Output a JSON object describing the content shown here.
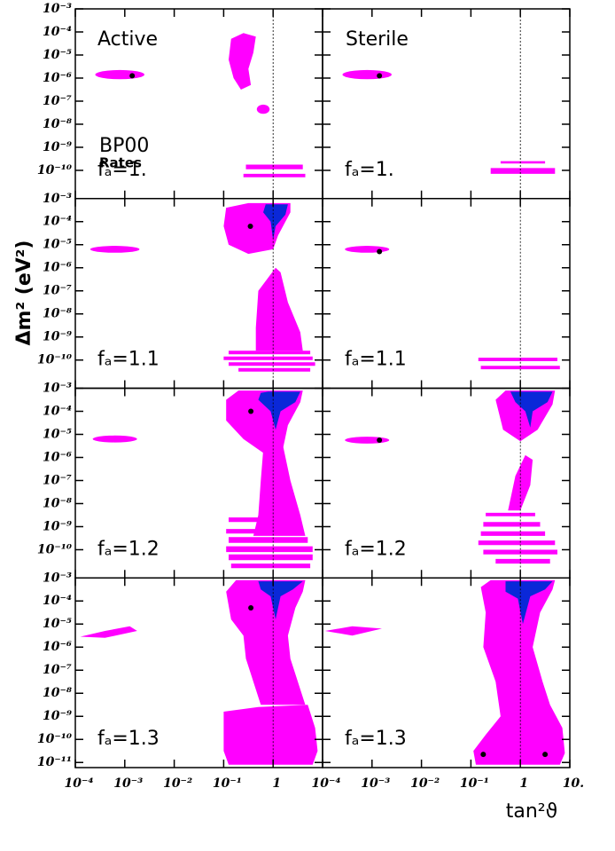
{
  "chart_data": {
    "type": "region",
    "log_x": true,
    "log_y": true,
    "columns": [
      "Active",
      "Sterile"
    ],
    "annotations": [
      "BP00",
      "Rates"
    ],
    "xlabel": "tan²ϑ",
    "ylabel": "Δm² (eV²)",
    "colors": [
      "#ff00ff",
      "#0a28d8"
    ],
    "xlim": [
      0.0001,
      10
    ],
    "xticks": [
      {
        "value": 0.0001,
        "label": "10⁻⁴"
      },
      {
        "value": 0.001,
        "label": "10⁻³"
      },
      {
        "value": 0.01,
        "label": "10⁻²"
      },
      {
        "value": 0.1,
        "label": "10⁻¹"
      },
      1,
      {
        "value": 10,
        "label": "10."
      }
    ],
    "ylim": [
      6e-12,
      0.001
    ],
    "rows": [
      {
        "label": "fₐ=1.",
        "yticks": [
          {
            "value": 0.001,
            "label": "10⁻³"
          },
          {
            "value": 0.0001,
            "label": "10⁻⁴"
          },
          {
            "value": 1e-05,
            "label": "10⁻⁵"
          },
          {
            "value": 1e-06,
            "label": "10⁻⁶"
          },
          {
            "value": 1e-07,
            "label": "10⁻⁷"
          },
          {
            "value": 1e-08,
            "label": "10⁻⁸"
          },
          {
            "value": 1e-09,
            "label": "10⁻⁹"
          },
          {
            "value": 1e-10,
            "label": "10⁻¹⁰"
          }
        ]
      },
      {
        "label": "fₐ=1.1",
        "yticks": [
          {
            "value": 0.001,
            "label": "10⁻³"
          },
          {
            "value": 0.0001,
            "label": "10⁻⁴"
          },
          {
            "value": 1e-05,
            "label": "10⁻⁵"
          },
          {
            "value": 1e-06,
            "label": "10⁻⁶"
          },
          {
            "value": 1e-07,
            "label": "10⁻⁷"
          },
          {
            "value": 1e-08,
            "label": "10⁻⁸"
          },
          {
            "value": 1e-09,
            "label": "10⁻⁹"
          },
          {
            "value": 1e-10,
            "label": "10⁻¹⁰"
          }
        ]
      },
      {
        "label": "fₐ=1.2",
        "yticks": [
          {
            "value": 0.001,
            "label": "10⁻³"
          },
          {
            "value": 0.0001,
            "label": "10⁻⁴"
          },
          {
            "value": 1e-05,
            "label": "10⁻⁵"
          },
          {
            "value": 1e-06,
            "label": "10⁻⁶"
          },
          {
            "value": 1e-07,
            "label": "10⁻⁷"
          },
          {
            "value": 1e-08,
            "label": "10⁻⁸"
          },
          {
            "value": 1e-09,
            "label": "10⁻⁹"
          },
          {
            "value": 1e-10,
            "label": "10⁻¹⁰"
          }
        ]
      },
      {
        "label": "fₐ=1.3",
        "yticks": [
          {
            "value": 0.001,
            "label": "10⁻³"
          },
          {
            "value": 0.0001,
            "label": "10⁻⁴"
          },
          {
            "value": 1e-05,
            "label": "10⁻⁵"
          },
          {
            "value": 1e-06,
            "label": "10⁻⁶"
          },
          {
            "value": 1e-07,
            "label": "10⁻⁷"
          },
          {
            "value": 1e-08,
            "label": "10⁻⁸"
          },
          {
            "value": 1e-09,
            "label": "10⁻⁹"
          },
          {
            "value": 1e-10,
            "label": "10⁻¹⁰"
          },
          {
            "value": 1e-11,
            "label": "10⁻¹¹"
          }
        ]
      }
    ]
  }
}
